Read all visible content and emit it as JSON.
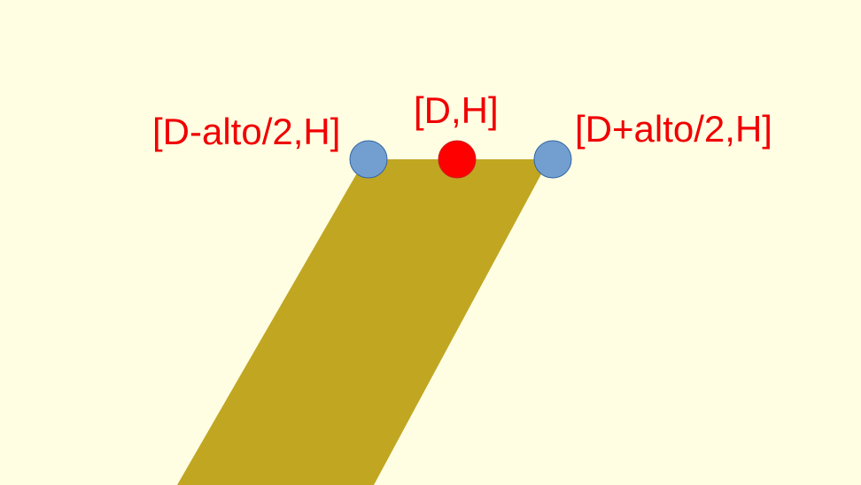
{
  "diagram": {
    "colors": {
      "background": "#FFFEE3",
      "band": "#C1A622",
      "label": "#F00000",
      "endpoint_fill": "#729FCF",
      "endpoint_stroke": "#3465A4",
      "center_fill": "#FF0000",
      "center_stroke": "#C9211E"
    },
    "labels": {
      "left_point": "[D-alto/2,H]",
      "center_point": "[D,H]",
      "right_point": "[D+alto/2,H]"
    }
  }
}
